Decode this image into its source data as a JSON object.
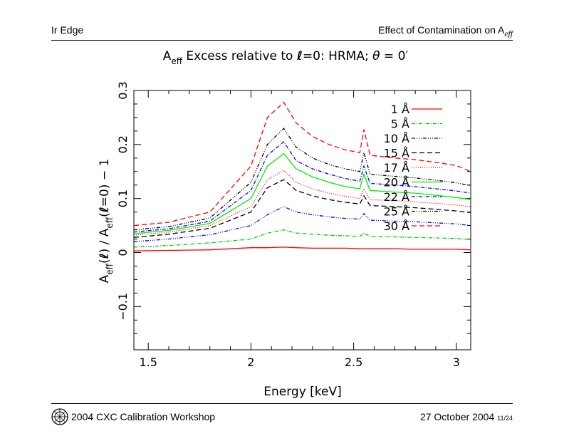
{
  "header": {
    "left": "Ir Edge",
    "right_main": "Effect of Contamination on A",
    "right_sub": "eff"
  },
  "footer": {
    "left": "2004 CXC Calibration Workshop",
    "date": "27 October 2004",
    "page": "11/24",
    "logo_icon": "cxc-logo-icon"
  },
  "chart_data": {
    "type": "line",
    "title": {
      "a": "A",
      "eff": "eff",
      "rest": " Excess relative to ",
      "ell": "ℓ",
      "eq": "=0: HRMA; ",
      "theta": "θ",
      "tail": " = 0′"
    },
    "xlabel": "Energy [keV]",
    "ylabel": {
      "a1": "A",
      "eff1": "eff",
      "p1": "(",
      "ell1": "ℓ",
      "p2": ") / A",
      "eff2": "eff",
      "p3": "(",
      "ell2": "ℓ",
      "p4": "=0) − 1"
    },
    "xlim": [
      1.43,
      3.07
    ],
    "ylim": [
      -0.18,
      0.3
    ],
    "xticks": [
      1.5,
      2,
      2.5,
      3
    ],
    "xtick_labels": [
      "1.5",
      "2",
      "2.5",
      "3"
    ],
    "yticks": [
      -0.1,
      0,
      0.1,
      0.2,
      0.3
    ],
    "ytick_labels": [
      "−0.1",
      "0",
      "0.1",
      "0.2",
      "0.3"
    ],
    "series": [
      {
        "name": "1 Å",
        "color": "#ff0000",
        "dash": "",
        "values": [
          0.003,
          0.004,
          0.005,
          0.009,
          0.009,
          0.01,
          0.009,
          0.008,
          0.008,
          0.008,
          0.007,
          0.007,
          0.007,
          0.007,
          0.006,
          0.006,
          0.006,
          0.005
        ]
      },
      {
        "name": "5 Å",
        "color": "#00cc00",
        "dash": "5,2,1,2",
        "values": [
          0.01,
          0.013,
          0.018,
          0.025,
          0.036,
          0.042,
          0.036,
          0.034,
          0.032,
          0.031,
          0.03,
          0.036,
          0.03,
          0.029,
          0.028,
          0.027,
          0.026,
          0.024
        ]
      },
      {
        "name": "10 Å",
        "color": "#0000ff",
        "dash": "5,2,1,2,1,2,1,2",
        "values": [
          0.02,
          0.025,
          0.033,
          0.05,
          0.07,
          0.085,
          0.075,
          0.07,
          0.066,
          0.063,
          0.062,
          0.072,
          0.06,
          0.058,
          0.057,
          0.055,
          0.053,
          0.05
        ]
      },
      {
        "name": "15 Å",
        "color": "#000000",
        "dash": "7,4",
        "values": [
          0.028,
          0.034,
          0.045,
          0.075,
          0.12,
          0.135,
          0.115,
          0.105,
          0.098,
          0.093,
          0.09,
          0.105,
          0.087,
          0.085,
          0.083,
          0.08,
          0.077,
          0.074
        ]
      },
      {
        "name": "17 Å",
        "color": "#ff0000",
        "dash": "1,2",
        "values": [
          0.032,
          0.038,
          0.05,
          0.085,
          0.135,
          0.152,
          0.13,
          0.118,
          0.11,
          0.104,
          0.1,
          0.118,
          0.098,
          0.096,
          0.094,
          0.091,
          0.088,
          0.085
        ]
      },
      {
        "name": "20 Å",
        "color": "#00ee00",
        "dash": "",
        "values": [
          0.035,
          0.041,
          0.054,
          0.1,
          0.16,
          0.183,
          0.155,
          0.14,
          0.13,
          0.122,
          0.118,
          0.145,
          0.115,
          0.112,
          0.11,
          0.106,
          0.102,
          0.098
        ]
      },
      {
        "name": "22 Å",
        "color": "#0000ff",
        "dash": "5,2,1,2",
        "values": [
          0.038,
          0.044,
          0.058,
          0.115,
          0.18,
          0.205,
          0.17,
          0.155,
          0.145,
          0.137,
          0.132,
          0.16,
          0.128,
          0.125,
          0.122,
          0.118,
          0.114,
          0.11
        ]
      },
      {
        "name": "25 Å",
        "color": "#000000",
        "dash": "5,2,1,2,1,2,1,2",
        "values": [
          0.042,
          0.048,
          0.064,
          0.13,
          0.2,
          0.23,
          0.195,
          0.175,
          0.163,
          0.155,
          0.15,
          0.185,
          0.145,
          0.141,
          0.138,
          0.134,
          0.129,
          0.124
        ]
      },
      {
        "name": "30 Å",
        "color": "#ff0000",
        "dash": "7,4",
        "values": [
          0.05,
          0.056,
          0.075,
          0.16,
          0.25,
          0.278,
          0.24,
          0.215,
          0.2,
          0.19,
          0.185,
          0.228,
          0.18,
          0.175,
          0.172,
          0.167,
          0.161,
          0.15
        ]
      }
    ],
    "x": [
      1.43,
      1.6,
      1.8,
      2.0,
      2.08,
      2.16,
      2.22,
      2.3,
      2.38,
      2.46,
      2.53,
      2.55,
      2.58,
      2.7,
      2.8,
      2.9,
      3.0,
      3.07
    ],
    "grid": false,
    "legend_position": "top-right"
  }
}
